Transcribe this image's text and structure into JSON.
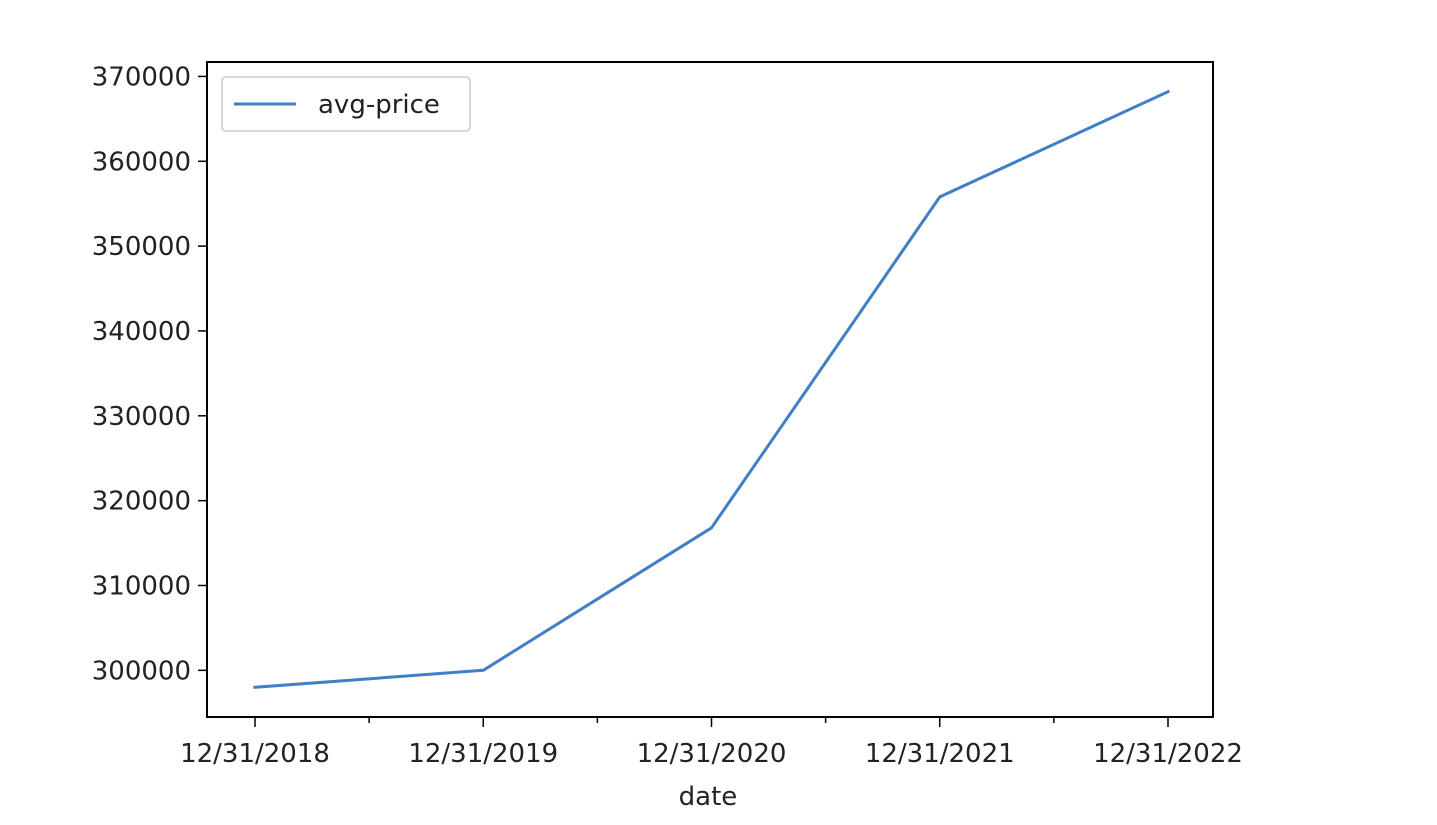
{
  "chart_data": {
    "type": "line",
    "xlabel": "date",
    "ylabel": "",
    "x": [
      "12/31/2018",
      "12/31/2019",
      "12/31/2020",
      "12/31/2021",
      "12/31/2022"
    ],
    "x_ticks": [
      "12/31/2018",
      "12/31/2019",
      "12/31/2020",
      "12/31/2021",
      "12/31/2022"
    ],
    "x_minor_ticks": true,
    "y_ticks": [
      300000,
      310000,
      320000,
      330000,
      340000,
      350000,
      360000,
      370000
    ],
    "ylim": [
      294500,
      371700
    ],
    "series": [
      {
        "name": "avg-price",
        "color": "#3f7fc6",
        "values": [
          298000,
          300000,
          316800,
          355800,
          368200
        ]
      }
    ],
    "legend_position": "top-left",
    "grid": false
  }
}
